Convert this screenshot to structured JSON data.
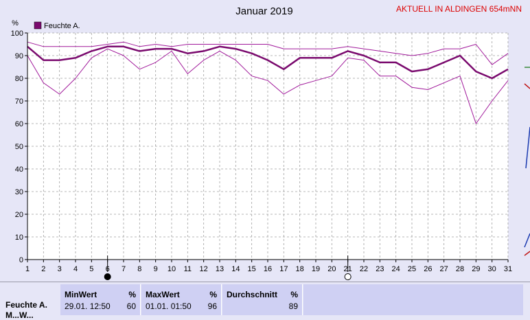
{
  "header": {
    "title": "Januar 2019",
    "station": "AKTUELL IN ALDINGEN 654mNN",
    "y_unit": "%",
    "legend_label": "Feuchte A."
  },
  "colors": {
    "main": "#7a0a6e",
    "thin": "#a0189a",
    "grid": "#a0a0a0",
    "title_red": "#dd0000"
  },
  "chart_data": {
    "type": "line",
    "title": "Januar 2019",
    "ylabel": "%",
    "xlabel": "",
    "x": [
      1,
      2,
      3,
      4,
      5,
      6,
      7,
      8,
      9,
      10,
      11,
      12,
      13,
      14,
      15,
      16,
      17,
      18,
      19,
      20,
      21,
      22,
      23,
      24,
      25,
      26,
      27,
      28,
      29,
      30,
      31
    ],
    "xlim": [
      1,
      31
    ],
    "ylim": [
      0,
      100
    ],
    "yticks": [
      0,
      10,
      20,
      30,
      40,
      50,
      60,
      70,
      80,
      90,
      100
    ],
    "grid": true,
    "legend": "top-left",
    "series": [
      {
        "name": "Feuchte A.",
        "role": "mean",
        "values": [
          94,
          88,
          88,
          89,
          92,
          94,
          94,
          92,
          93,
          93,
          91,
          92,
          94,
          93,
          91,
          88,
          84,
          89,
          89,
          89,
          92,
          90,
          87,
          87,
          83,
          84,
          87,
          90,
          83,
          80,
          84
        ]
      },
      {
        "role": "max",
        "values": [
          96,
          94,
          94,
          94,
          94,
          95,
          96,
          94,
          95,
          94,
          95,
          95,
          95,
          95,
          95,
          95,
          93,
          93,
          93,
          93,
          94,
          93,
          92,
          91,
          90,
          91,
          93,
          93,
          95,
          86,
          91
        ]
      },
      {
        "role": "min",
        "values": [
          90,
          78,
          73,
          80,
          89,
          93,
          90,
          84,
          87,
          92,
          82,
          88,
          92,
          88,
          81,
          79,
          73,
          77,
          79,
          81,
          89,
          88,
          81,
          81,
          76,
          75,
          78,
          81,
          60,
          70,
          79
        ]
      }
    ],
    "moon_markers": [
      {
        "day": 6,
        "phase": "new"
      },
      {
        "day": 21,
        "phase": "full"
      }
    ]
  },
  "footer": {
    "row_label": "Feuchte A.",
    "row_label_2": "M...W...",
    "min": {
      "header": "MinWert",
      "unit": "%",
      "time": "29.01.  12:50",
      "value": "60"
    },
    "max": {
      "header": "MaxWert",
      "unit": "%",
      "time": "01.01.  01:50",
      "value": "96"
    },
    "avg": {
      "header": "Durchschnitt",
      "unit": "%",
      "value": "89"
    }
  }
}
